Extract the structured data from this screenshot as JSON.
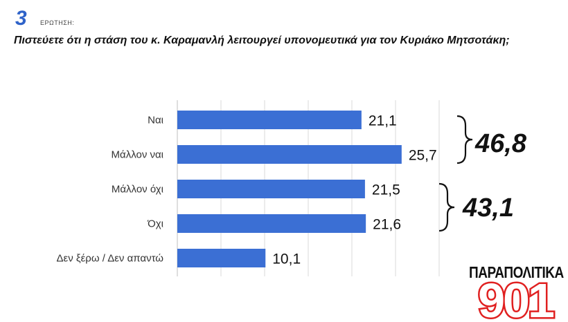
{
  "header": {
    "number": "3",
    "label": "ΕΡΩΤΗΣΗ:",
    "question": "Πιστεύετε ότι η στάση του κ. Καραμανλή λειτουργεί υπονομευτικά για τον Κυριάκο Μητσοτάκη;"
  },
  "chart_data": {
    "type": "bar",
    "orientation": "horizontal",
    "categories": [
      "Ναι",
      "Μάλλον ναι",
      "Μάλλον όχι",
      "Όχι",
      "Δεν ξέρω / Δεν απαντώ"
    ],
    "values": [
      21.1,
      25.7,
      21.5,
      21.6,
      10.1
    ],
    "value_labels": [
      "21,1",
      "25,7",
      "21,5",
      "21,6",
      "10,1"
    ],
    "xlim": [
      0,
      30
    ],
    "grid": true,
    "bar_color": "#3b6fd4",
    "groups": [
      {
        "members": [
          "Ναι",
          "Μάλλον ναι"
        ],
        "total": "46,8"
      },
      {
        "members": [
          "Μάλλον όχι",
          "Όχι"
        ],
        "total": "43,1"
      }
    ]
  },
  "logo": {
    "top": "ΠΑΡΑΠΟΛΙΤΙΚΑ",
    "number": "901",
    "color": "#e02020"
  }
}
